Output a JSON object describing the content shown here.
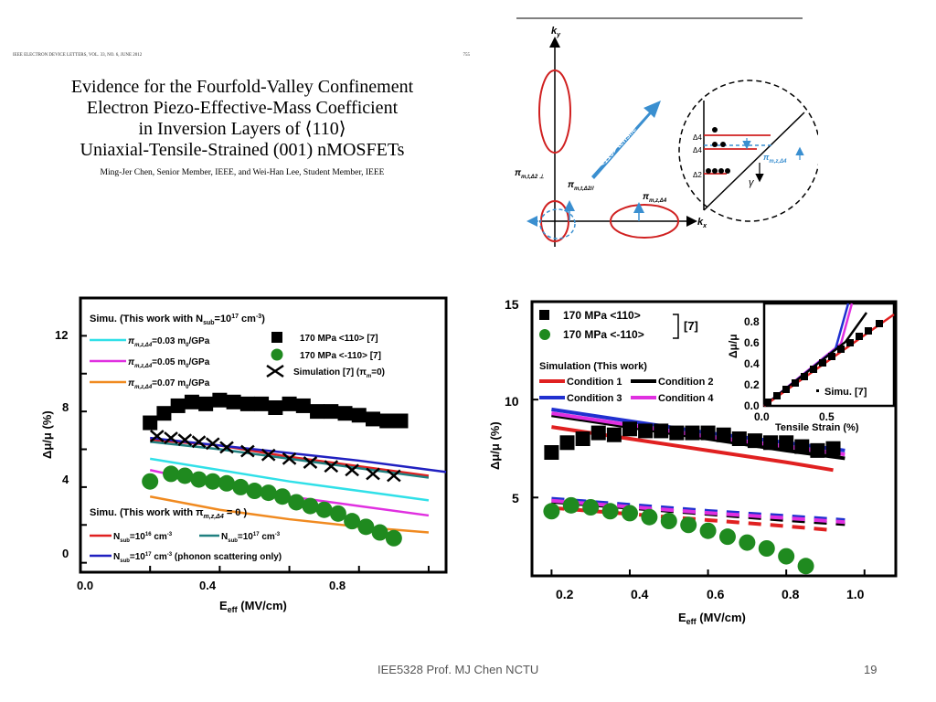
{
  "paper": {
    "header": "IEEE ELECTRON DEVICE LETTERS, VOL. 33, NO. 6, JUNE 2012",
    "page": "755",
    "title_lines": [
      "Evidence for the Fourfold-Valley Confinement",
      "Electron Piezo-Effective-Mass Coefficient",
      "in Inversion Layers of ⟨110⟩",
      "Uniaxial-Tensile-Strained (001) nMOSFETs"
    ],
    "authors": "Ming-Jer Chen, Senior Member, IEEE, and Wei-Han Lee, Student Member, IEEE"
  },
  "diagram": {
    "ky": "k",
    "ky_sub": "y",
    "kx": "k",
    "kx_sub": "x",
    "tensile_label": "<110> tensile",
    "pi_t_perp": "π",
    "pi_t_perp_sub": "m,t,Δ2 ⊥",
    "pi_t_par": "π",
    "pi_t_par_sub": "m,t,Δ2//",
    "pi_z": "π",
    "pi_z_sub": "m,z,Δ4",
    "pi_z2": "π",
    "pi_z2_sub": "m,z,Δ4",
    "d4a": "Δ4",
    "d4b": "Δ4",
    "d2": "Δ2",
    "gamma": "γ"
  },
  "left_chart": {
    "legend_title": "Simu. (This work with N",
    "legend_title_sub": "sub",
    "legend_title_end": "=10",
    "legend_title_sup": "17",
    "legend_title_unit": " cm",
    "legend_title_unit_sup": "-3",
    "legend_title_close": ")",
    "sim_entries": [
      {
        "prefix": "π",
        "sub": "m,z,Δ4",
        "value": "=0.03 m",
        "m_sub": "0",
        "unit": "/GPa"
      },
      {
        "prefix": "π",
        "sub": "m,z,Δ4",
        "value": "=0.05 m",
        "m_sub": "0",
        "unit": "/GPa"
      },
      {
        "prefix": "π",
        "sub": "m,z,Δ4",
        "value": "=0.07 m",
        "m_sub": "0",
        "unit": "/GPa"
      }
    ],
    "exp_entries": [
      "170 MPa <110> [7]",
      "170 MPa <-110> [7]",
      "Simulation [7] (π",
      "m",
      "=0)"
    ],
    "legend2_title": "Simu. (This work with π",
    "legend2_title_sub": "m,z,Δ4",
    "legend2_title_end": " = 0 )",
    "nsub_entries": [
      "N",
      "sub",
      "=10",
      "16",
      " cm",
      "-3",
      "N",
      "sub",
      "=10",
      "17",
      " cm",
      "-3"
    ],
    "phonon_entry": [
      "N",
      "sub",
      "=10",
      "17",
      " cm",
      "-3",
      " (phonon scattering only)"
    ],
    "ylabel": "Δμ/μ (%)",
    "xlabel": "E",
    "xlabel_sub": "eff",
    "xlabel_unit": " (MV/cm)",
    "xticks": [
      "0.0",
      "0.4",
      "0.8"
    ],
    "yticks": [
      "0",
      "4",
      "8",
      "12"
    ]
  },
  "right_chart": {
    "legend_exp": [
      "170 MPa <110>",
      "170 MPa <-110>",
      "[7]"
    ],
    "legend_sim_title": "Simulation (This work)",
    "conditions": [
      "Condition 1",
      "Condition 2",
      "Condition 3",
      "Condition 4"
    ],
    "ylabel": "Δμ/μ (%)",
    "xlabel": "E",
    "xlabel_sub": "eff",
    "xlabel_unit": " (MV/cm)",
    "xticks": [
      "0.2",
      "0.4",
      "0.6",
      "0.8",
      "1.0"
    ],
    "yticks": [
      "15",
      "10",
      "5"
    ],
    "inset_ylabel": "Δμ/μ",
    "inset_yticks": [
      "0.8",
      "0.6",
      "0.4",
      "0.2",
      "0.0"
    ],
    "inset_xticks": [
      "0.0",
      "0.5"
    ],
    "inset_xlabel": "Tensile Strain (%)",
    "inset_legend": "Simu. [7]"
  },
  "footer": {
    "text": "IEE5328 Prof. MJ Chen NCTU",
    "slide_number": "19"
  },
  "chart_data": [
    {
      "type": "scatter",
      "title": "",
      "xlabel": "Eeff (MV/cm)",
      "ylabel": "Δμ/μ (%)",
      "xlim": [
        0.0,
        1.05
      ],
      "ylim": [
        -0.5,
        14
      ],
      "series": [
        {
          "name": "170 MPa <110> [7]",
          "color": "#000000",
          "marker": "square",
          "x": [
            0.2,
            0.24,
            0.28,
            0.32,
            0.36,
            0.4,
            0.44,
            0.48,
            0.52,
            0.56,
            0.6,
            0.64,
            0.68,
            0.72,
            0.76,
            0.8,
            0.84,
            0.88,
            0.92
          ],
          "y": [
            7.4,
            7.9,
            8.3,
            8.5,
            8.4,
            8.6,
            8.5,
            8.4,
            8.4,
            8.2,
            8.4,
            8.3,
            8.0,
            8.0,
            7.9,
            7.8,
            7.6,
            7.5,
            7.5
          ]
        },
        {
          "name": "170 MPa <-110> [7]",
          "color": "#1f8a1f",
          "marker": "circle",
          "x": [
            0.2,
            0.26,
            0.3,
            0.34,
            0.38,
            0.42,
            0.46,
            0.5,
            0.54,
            0.58,
            0.62,
            0.66,
            0.7,
            0.74,
            0.78,
            0.82,
            0.86,
            0.9
          ],
          "y": [
            4.3,
            4.7,
            4.6,
            4.4,
            4.3,
            4.2,
            4.0,
            3.8,
            3.7,
            3.5,
            3.2,
            3.0,
            2.8,
            2.6,
            2.2,
            1.9,
            1.6,
            1.3
          ]
        },
        {
          "name": "Simulation [7] (πm=0)",
          "color": "#000000",
          "marker": "x",
          "x": [
            0.22,
            0.26,
            0.3,
            0.34,
            0.38,
            0.42,
            0.48,
            0.54,
            0.6,
            0.66,
            0.72,
            0.78,
            0.84,
            0.9
          ],
          "y": [
            6.7,
            6.6,
            6.5,
            6.4,
            6.3,
            6.1,
            5.9,
            5.7,
            5.5,
            5.3,
            5.1,
            4.9,
            4.7,
            4.6
          ]
        },
        {
          "name": "πm,z,Δ4=0.03 m0/GPa",
          "color": "#30e0e8",
          "marker": "line",
          "x": [
            0.2,
            0.4,
            0.6,
            0.8,
            1.0
          ],
          "y": [
            5.5,
            4.9,
            4.3,
            3.8,
            3.3
          ]
        },
        {
          "name": "πm,z,Δ4=0.05 m0/GPa",
          "color": "#e030e0",
          "marker": "line",
          "x": [
            0.2,
            0.4,
            0.6,
            0.8,
            1.0
          ],
          "y": [
            4.9,
            4.1,
            3.5,
            3.0,
            2.5
          ]
        },
        {
          "name": "πm,z,Δ4=0.07 m0/GPa",
          "color": "#f08a20",
          "marker": "line",
          "x": [
            0.2,
            0.4,
            0.6,
            0.8,
            1.0
          ],
          "y": [
            3.5,
            2.8,
            2.3,
            1.9,
            1.6
          ]
        },
        {
          "name": "Nsub=10^16 cm^-3",
          "color": "#e02020",
          "marker": "line",
          "x": [
            0.2,
            0.4,
            0.6,
            0.8,
            1.0
          ],
          "y": [
            6.5,
            6.2,
            5.6,
            5.1,
            4.6
          ]
        },
        {
          "name": "Nsub=10^17 cm^-3",
          "color": "#208080",
          "marker": "line",
          "x": [
            0.2,
            0.4,
            0.6,
            0.8,
            1.0
          ],
          "y": [
            6.4,
            6.0,
            5.5,
            5.0,
            4.5
          ]
        },
        {
          "name": "Nsub=10^17 cm^-3 (phonon scattering only)",
          "color": "#2020c0",
          "marker": "line",
          "x": [
            0.2,
            0.4,
            0.6,
            0.8,
            1.05
          ],
          "y": [
            6.6,
            6.2,
            5.8,
            5.4,
            4.8
          ]
        }
      ]
    },
    {
      "type": "scatter",
      "title": "",
      "xlabel": "Eeff (MV/cm)",
      "ylabel": "Δμ/μ (%)",
      "xlim": [
        0.15,
        1.08
      ],
      "ylim": [
        1,
        15
      ],
      "series": [
        {
          "name": "170 MPa <110>",
          "color": "#000000",
          "marker": "square",
          "x": [
            0.2,
            0.24,
            0.28,
            0.32,
            0.36,
            0.4,
            0.44,
            0.48,
            0.52,
            0.56,
            0.6,
            0.64,
            0.68,
            0.72,
            0.76,
            0.8,
            0.84,
            0.88,
            0.92
          ],
          "y": [
            7.3,
            7.8,
            8.0,
            8.3,
            8.2,
            8.5,
            8.4,
            8.4,
            8.3,
            8.3,
            8.3,
            8.2,
            8.0,
            7.9,
            7.8,
            7.8,
            7.6,
            7.4,
            7.5
          ]
        },
        {
          "name": "170 MPa <-110>",
          "color": "#1f8a1f",
          "marker": "circle",
          "x": [
            0.2,
            0.25,
            0.3,
            0.35,
            0.4,
            0.45,
            0.5,
            0.55,
            0.6,
            0.65,
            0.7,
            0.75,
            0.8,
            0.85
          ],
          "y": [
            4.3,
            4.6,
            4.5,
            4.3,
            4.2,
            4.0,
            3.8,
            3.6,
            3.3,
            3.0,
            2.7,
            2.4,
            2.0,
            1.5
          ]
        },
        {
          "name": "Condition 1",
          "color": "#e02020",
          "marker": "line",
          "x": [
            0.2,
            0.4,
            0.6,
            0.8,
            0.92
          ],
          "y": [
            8.6,
            8.0,
            7.4,
            6.8,
            6.4
          ]
        },
        {
          "name": "Condition 2",
          "color": "#000000",
          "marker": "line",
          "x": [
            0.2,
            0.4,
            0.6,
            0.8,
            0.95
          ],
          "y": [
            9.2,
            8.6,
            8.0,
            7.4,
            7.0
          ]
        },
        {
          "name": "Condition 3",
          "color": "#2030d0",
          "marker": "line",
          "x": [
            0.2,
            0.4,
            0.6,
            0.8,
            0.95
          ],
          "y": [
            9.5,
            8.9,
            8.3,
            7.8,
            7.4
          ]
        },
        {
          "name": "Condition 4",
          "color": "#e030e0",
          "marker": "line",
          "x": [
            0.2,
            0.4,
            0.6,
            0.8,
            0.95
          ],
          "y": [
            9.3,
            8.7,
            8.1,
            7.6,
            7.2
          ]
        }
      ]
    }
  ]
}
